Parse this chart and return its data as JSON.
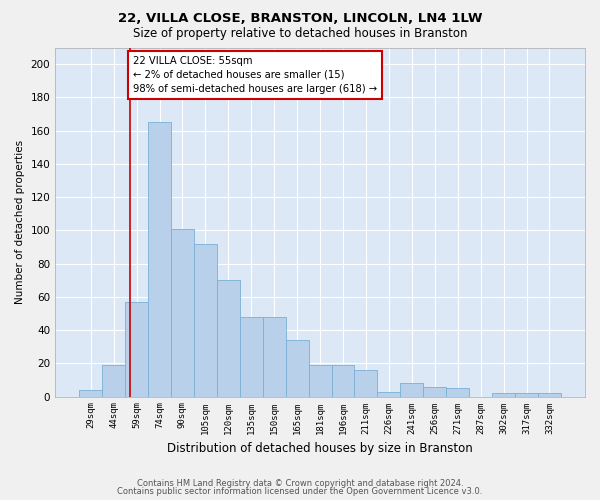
{
  "title": "22, VILLA CLOSE, BRANSTON, LINCOLN, LN4 1LW",
  "subtitle": "Size of property relative to detached houses in Branston",
  "xlabel": "Distribution of detached houses by size in Branston",
  "ylabel": "Number of detached properties",
  "categories": [
    "29sqm",
    "44sqm",
    "59sqm",
    "74sqm",
    "90sqm",
    "105sqm",
    "120sqm",
    "135sqm",
    "150sqm",
    "165sqm",
    "181sqm",
    "196sqm",
    "211sqm",
    "226sqm",
    "241sqm",
    "256sqm",
    "271sqm",
    "287sqm",
    "302sqm",
    "317sqm",
    "332sqm"
  ],
  "values": [
    4,
    19,
    57,
    165,
    101,
    92,
    70,
    48,
    48,
    34,
    19,
    19,
    16,
    3,
    8,
    6,
    5,
    0,
    2,
    2,
    2
  ],
  "bar_color": "#b8d0ea",
  "bar_edge_color": "#7aafd4",
  "background_color": "#dce8f5",
  "grid_color": "#ffffff",
  "ylim": [
    0,
    210
  ],
  "yticks": [
    0,
    20,
    40,
    60,
    80,
    100,
    120,
    140,
    160,
    180,
    200
  ],
  "vline_x": 1.73,
  "vline_color": "#cc0000",
  "annotation_text": "22 VILLA CLOSE: 55sqm\n← 2% of detached houses are smaller (15)\n98% of semi-detached houses are larger (618) →",
  "annotation_box_color": "#ffffff",
  "annotation_box_edge": "#cc0000",
  "footer_line1": "Contains HM Land Registry data © Crown copyright and database right 2024.",
  "footer_line2": "Contains public sector information licensed under the Open Government Licence v3.0."
}
